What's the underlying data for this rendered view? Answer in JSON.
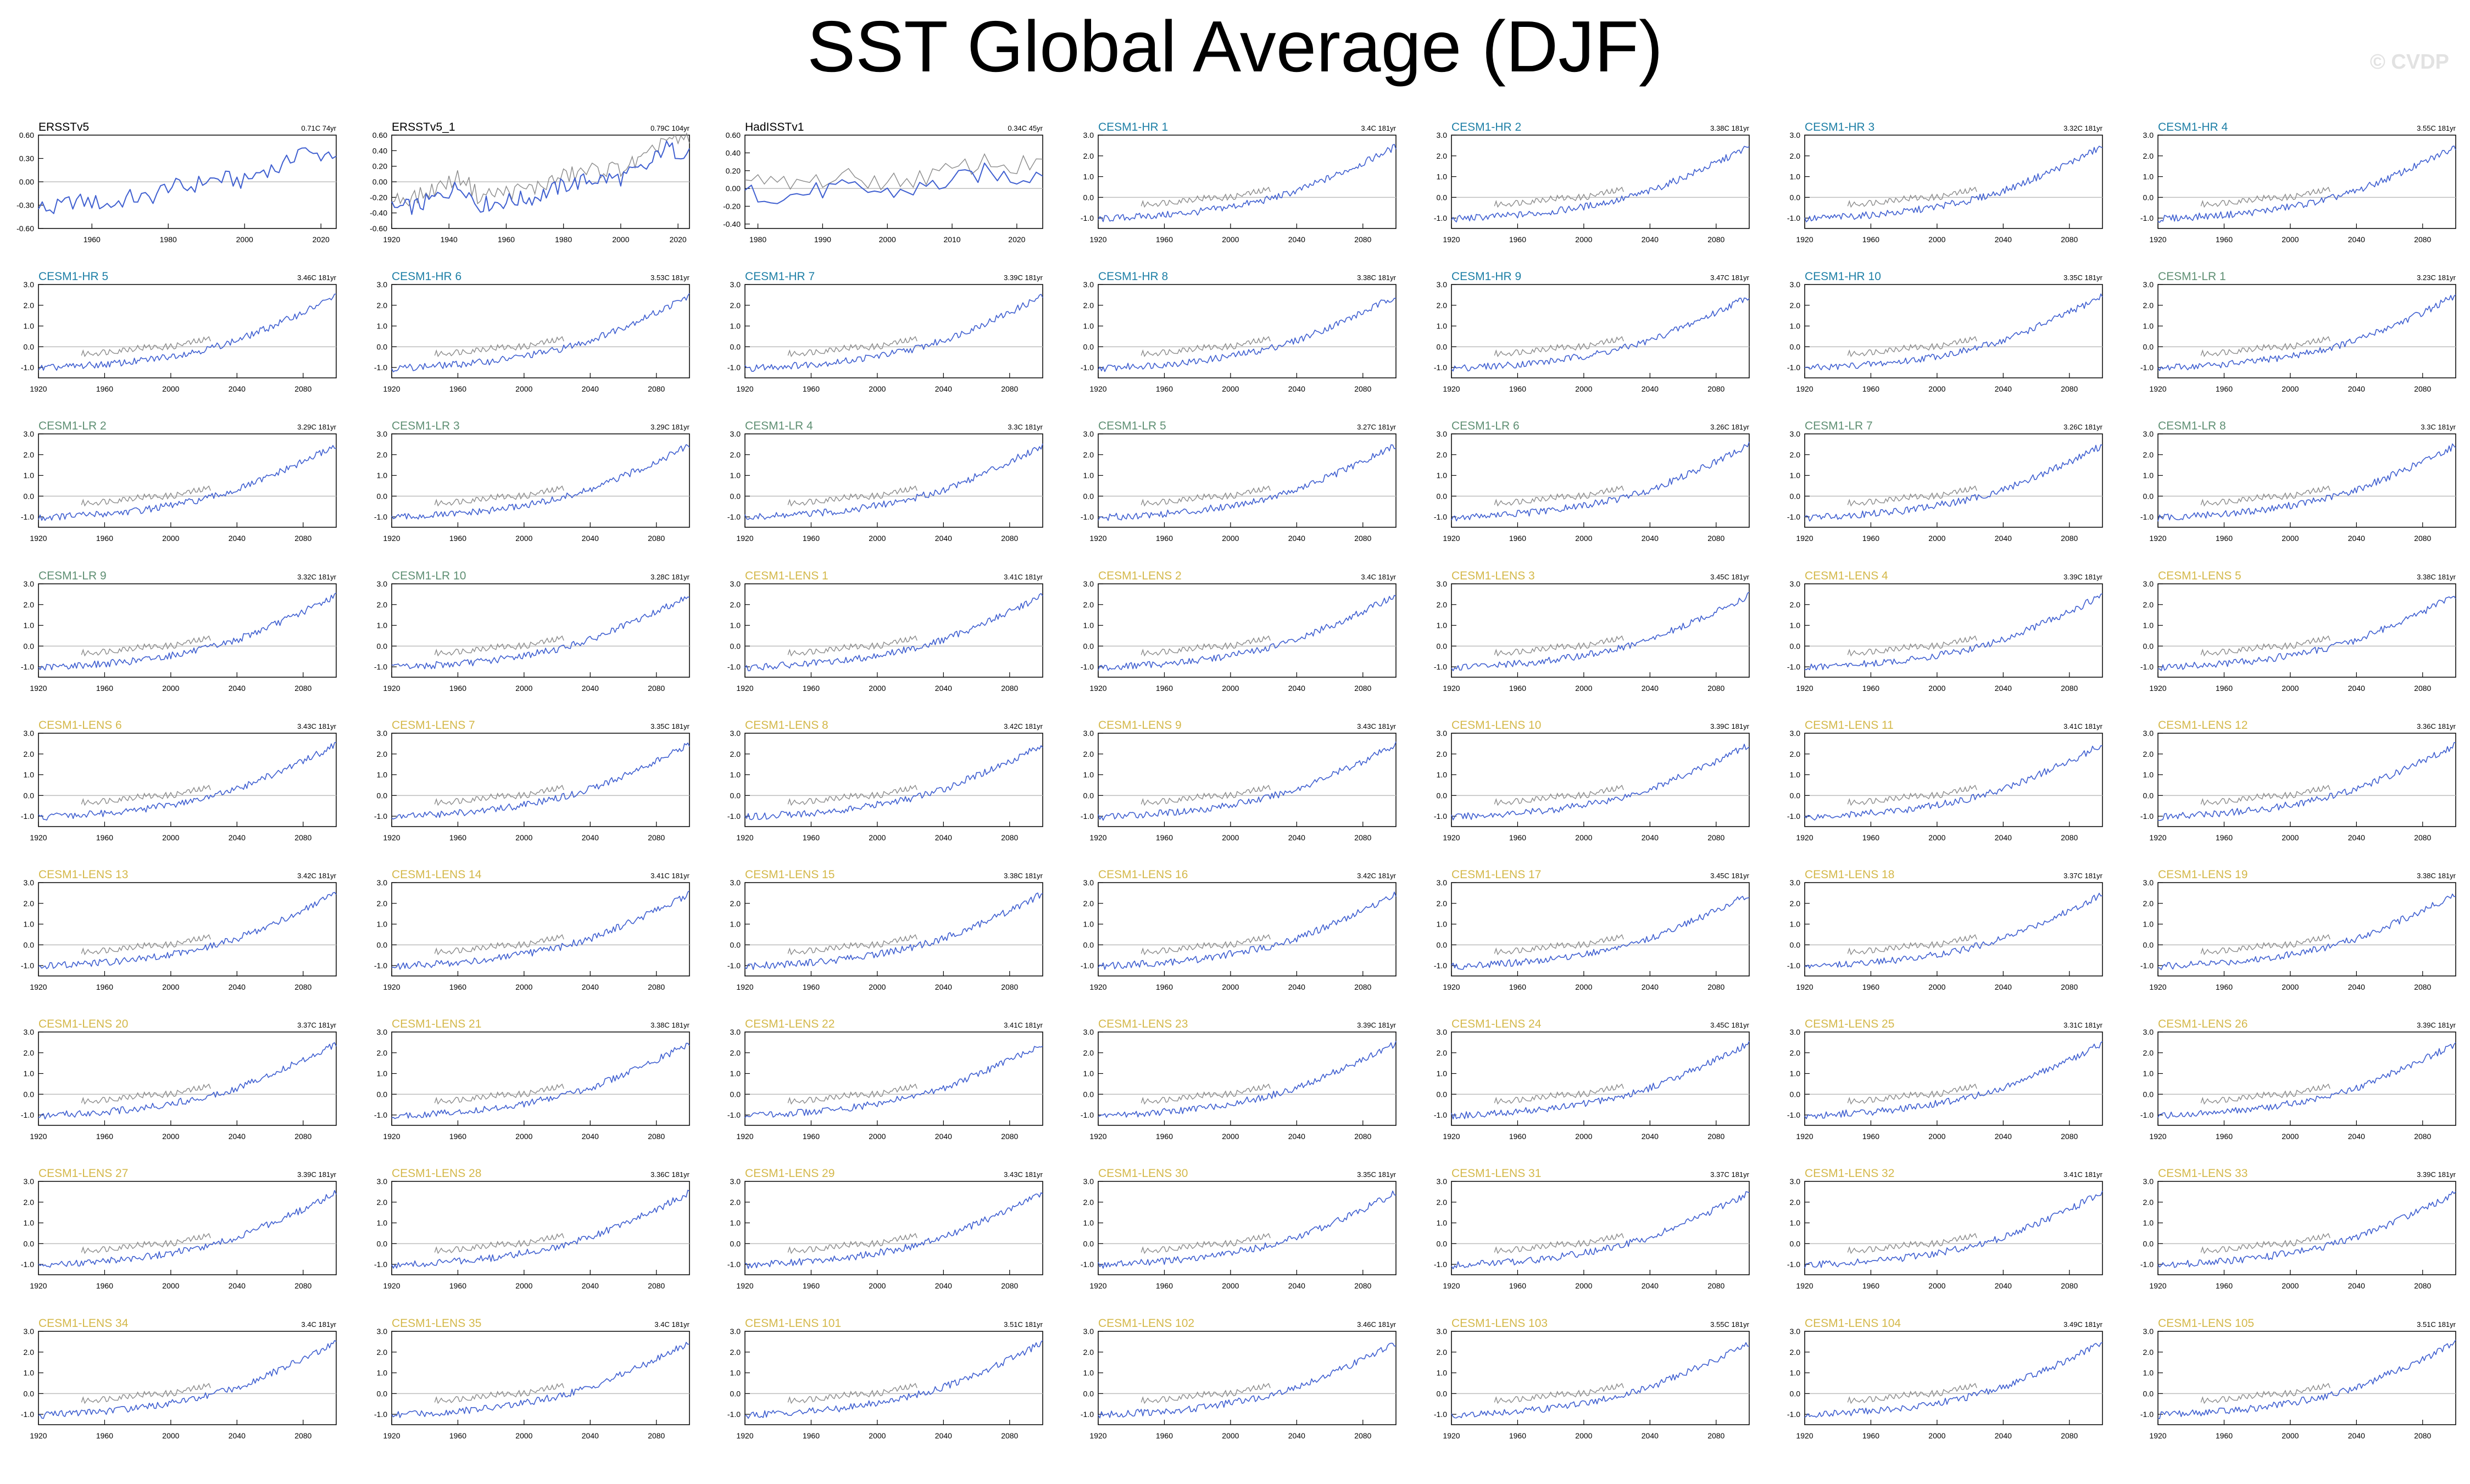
{
  "title": "SST Global Average (DJF)",
  "watermark": "© CVDP",
  "colors": {
    "model_line": "#3f5fd0",
    "obs_overlay": "#8a8a8a",
    "obs_title": "#000000",
    "hr_title": "#1e7fa6",
    "lr_title": "#5f8f73",
    "lens_title": "#d4b84a",
    "zero_line": "#bdbdbd"
  },
  "chart_data": [
    {
      "type": "line",
      "name": "ERSSTv5",
      "group": "obs",
      "trend": "0.71C 74yr",
      "xlim": [
        1946,
        2024
      ],
      "ylim": [
        -0.6,
        0.6
      ],
      "xticks": [
        1960,
        1980,
        2000,
        2020
      ],
      "yticks": [
        -0.6,
        -0.3,
        0.0,
        0.3,
        0.6
      ],
      "ytick_labels": [
        "-0.60",
        "-0.30",
        "0.00",
        "0.30",
        "0.60"
      ],
      "x": [
        1946,
        1950,
        1955,
        1960,
        1965,
        1970,
        1975,
        1980,
        1985,
        1990,
        1995,
        2000,
        2005,
        2010,
        2015,
        2017,
        2020,
        2024
      ],
      "y": [
        -0.33,
        -0.35,
        -0.25,
        -0.26,
        -0.3,
        -0.2,
        -0.22,
        -0.05,
        -0.08,
        0.02,
        0.04,
        0.0,
        0.16,
        0.18,
        0.46,
        0.33,
        0.35,
        0.38
      ]
    },
    {
      "type": "line",
      "name": "ERSSTv5_1",
      "group": "obs",
      "trend": "0.79C 104yr",
      "xlim": [
        1920,
        2024
      ],
      "ylim": [
        -0.6,
        0.6
      ],
      "xticks": [
        1920,
        1940,
        1960,
        1980,
        2000,
        2020
      ],
      "yticks": [
        -0.6,
        -0.4,
        -0.2,
        0.0,
        0.2,
        0.4,
        0.6
      ],
      "ytick_labels": [
        "-0.60",
        "-0.40",
        "-0.20",
        "0.00",
        "0.20",
        "0.40",
        "0.60"
      ],
      "x": [
        1920,
        1930,
        1940,
        1945,
        1950,
        1960,
        1970,
        1980,
        1990,
        2000,
        2010,
        2015,
        2020,
        2024
      ],
      "y": [
        -0.35,
        -0.3,
        -0.12,
        -0.05,
        -0.3,
        -0.25,
        -0.2,
        -0.05,
        0.03,
        0.05,
        0.2,
        0.45,
        0.38,
        0.42
      ]
    },
    {
      "type": "line",
      "name": "HadISSTv1",
      "group": "obs",
      "trend": "0.34C 45yr",
      "xlim": [
        1978,
        2024
      ],
      "ylim": [
        -0.45,
        0.6
      ],
      "xticks": [
        1980,
        1990,
        2000,
        2010,
        2020
      ],
      "yticks": [
        -0.4,
        -0.2,
        0.0,
        0.2,
        0.4,
        0.6
      ],
      "ytick_labels": [
        "-0.40",
        "-0.20",
        "0.00",
        "0.20",
        "0.40",
        "0.60"
      ],
      "x": [
        1978,
        1985,
        1990,
        1995,
        2000,
        2005,
        2010,
        2015,
        2020,
        2024
      ],
      "y": [
        -0.05,
        -0.08,
        -0.02,
        0.0,
        -0.05,
        0.0,
        0.08,
        0.18,
        0.12,
        0.2
      ]
    },
    {
      "type": "line",
      "name": "CESM1-HR 1",
      "group": "hr",
      "trend": "3.4C 181yr"
    },
    {
      "type": "line",
      "name": "CESM1-HR 2",
      "group": "hr",
      "trend": "3.38C 181yr"
    },
    {
      "type": "line",
      "name": "CESM1-HR 3",
      "group": "hr",
      "trend": "3.32C 181yr"
    },
    {
      "type": "line",
      "name": "CESM1-HR 4",
      "group": "hr",
      "trend": "3.55C 181yr"
    },
    {
      "type": "line",
      "name": "CESM1-HR 5",
      "group": "hr",
      "trend": "3.46C 181yr"
    },
    {
      "type": "line",
      "name": "CESM1-HR 6",
      "group": "hr",
      "trend": "3.53C 181yr"
    },
    {
      "type": "line",
      "name": "CESM1-HR 7",
      "group": "hr",
      "trend": "3.39C 181yr"
    },
    {
      "type": "line",
      "name": "CESM1-HR 8",
      "group": "hr",
      "trend": "3.38C 181yr"
    },
    {
      "type": "line",
      "name": "CESM1-HR 9",
      "group": "hr",
      "trend": "3.47C 181yr"
    },
    {
      "type": "line",
      "name": "CESM1-HR 10",
      "group": "hr",
      "trend": "3.35C 181yr"
    },
    {
      "type": "line",
      "name": "CESM1-LR 1",
      "group": "lr",
      "trend": "3.23C 181yr"
    },
    {
      "type": "line",
      "name": "CESM1-LR 2",
      "group": "lr",
      "trend": "3.29C 181yr"
    },
    {
      "type": "line",
      "name": "CESM1-LR 3",
      "group": "lr",
      "trend": "3.29C 181yr"
    },
    {
      "type": "line",
      "name": "CESM1-LR 4",
      "group": "lr",
      "trend": "3.3C 181yr"
    },
    {
      "type": "line",
      "name": "CESM1-LR 5",
      "group": "lr",
      "trend": "3.27C 181yr"
    },
    {
      "type": "line",
      "name": "CESM1-LR 6",
      "group": "lr",
      "trend": "3.26C 181yr"
    },
    {
      "type": "line",
      "name": "CESM1-LR 7",
      "group": "lr",
      "trend": "3.26C 181yr"
    },
    {
      "type": "line",
      "name": "CESM1-LR 8",
      "group": "lr",
      "trend": "3.3C 181yr"
    },
    {
      "type": "line",
      "name": "CESM1-LR 9",
      "group": "lr",
      "trend": "3.32C 181yr"
    },
    {
      "type": "line",
      "name": "CESM1-LR 10",
      "group": "lr",
      "trend": "3.28C 181yr"
    },
    {
      "type": "line",
      "name": "CESM1-LENS 1",
      "group": "lens",
      "trend": "3.41C 181yr"
    },
    {
      "type": "line",
      "name": "CESM1-LENS 2",
      "group": "lens",
      "trend": "3.4C 181yr"
    },
    {
      "type": "line",
      "name": "CESM1-LENS 3",
      "group": "lens",
      "trend": "3.45C 181yr"
    },
    {
      "type": "line",
      "name": "CESM1-LENS 4",
      "group": "lens",
      "trend": "3.39C 181yr"
    },
    {
      "type": "line",
      "name": "CESM1-LENS 5",
      "group": "lens",
      "trend": "3.38C 181yr"
    },
    {
      "type": "line",
      "name": "CESM1-LENS 6",
      "group": "lens",
      "trend": "3.43C 181yr"
    },
    {
      "type": "line",
      "name": "CESM1-LENS 7",
      "group": "lens",
      "trend": "3.35C 181yr"
    },
    {
      "type": "line",
      "name": "CESM1-LENS 8",
      "group": "lens",
      "trend": "3.42C 181yr"
    },
    {
      "type": "line",
      "name": "CESM1-LENS 9",
      "group": "lens",
      "trend": "3.43C 181yr"
    },
    {
      "type": "line",
      "name": "CESM1-LENS 10",
      "group": "lens",
      "trend": "3.39C 181yr"
    },
    {
      "type": "line",
      "name": "CESM1-LENS 11",
      "group": "lens",
      "trend": "3.41C 181yr"
    },
    {
      "type": "line",
      "name": "CESM1-LENS 12",
      "group": "lens",
      "trend": "3.36C 181yr"
    },
    {
      "type": "line",
      "name": "CESM1-LENS 13",
      "group": "lens",
      "trend": "3.42C 181yr"
    },
    {
      "type": "line",
      "name": "CESM1-LENS 14",
      "group": "lens",
      "trend": "3.41C 181yr"
    },
    {
      "type": "line",
      "name": "CESM1-LENS 15",
      "group": "lens",
      "trend": "3.38C 181yr"
    },
    {
      "type": "line",
      "name": "CESM1-LENS 16",
      "group": "lens",
      "trend": "3.42C 181yr"
    },
    {
      "type": "line",
      "name": "CESM1-LENS 17",
      "group": "lens",
      "trend": "3.45C 181yr"
    },
    {
      "type": "line",
      "name": "CESM1-LENS 18",
      "group": "lens",
      "trend": "3.37C 181yr"
    },
    {
      "type": "line",
      "name": "CESM1-LENS 19",
      "group": "lens",
      "trend": "3.38C 181yr"
    },
    {
      "type": "line",
      "name": "CESM1-LENS 20",
      "group": "lens",
      "trend": "3.37C 181yr"
    },
    {
      "type": "line",
      "name": "CESM1-LENS 21",
      "group": "lens",
      "trend": "3.38C 181yr"
    },
    {
      "type": "line",
      "name": "CESM1-LENS 22",
      "group": "lens",
      "trend": "3.41C 181yr"
    },
    {
      "type": "line",
      "name": "CESM1-LENS 23",
      "group": "lens",
      "trend": "3.39C 181yr"
    },
    {
      "type": "line",
      "name": "CESM1-LENS 24",
      "group": "lens",
      "trend": "3.45C 181yr"
    },
    {
      "type": "line",
      "name": "CESM1-LENS 25",
      "group": "lens",
      "trend": "3.31C 181yr"
    },
    {
      "type": "line",
      "name": "CESM1-LENS 26",
      "group": "lens",
      "trend": "3.39C 181yr"
    },
    {
      "type": "line",
      "name": "CESM1-LENS 27",
      "group": "lens",
      "trend": "3.39C 181yr"
    },
    {
      "type": "line",
      "name": "CESM1-LENS 28",
      "group": "lens",
      "trend": "3.36C 181yr"
    },
    {
      "type": "line",
      "name": "CESM1-LENS 29",
      "group": "lens",
      "trend": "3.43C 181yr"
    },
    {
      "type": "line",
      "name": "CESM1-LENS 30",
      "group": "lens",
      "trend": "3.35C 181yr"
    },
    {
      "type": "line",
      "name": "CESM1-LENS 31",
      "group": "lens",
      "trend": "3.37C 181yr"
    },
    {
      "type": "line",
      "name": "CESM1-LENS 32",
      "group": "lens",
      "trend": "3.41C 181yr"
    },
    {
      "type": "line",
      "name": "CESM1-LENS 33",
      "group": "lens",
      "trend": "3.39C 181yr"
    },
    {
      "type": "line",
      "name": "CESM1-LENS 34",
      "group": "lens",
      "trend": "3.4C 181yr"
    },
    {
      "type": "line",
      "name": "CESM1-LENS 35",
      "group": "lens",
      "trend": "3.4C 181yr"
    },
    {
      "type": "line",
      "name": "CESM1-LENS 101",
      "group": "lens",
      "trend": "3.51C 181yr"
    },
    {
      "type": "line",
      "name": "CESM1-LENS 102",
      "group": "lens",
      "trend": "3.46C 181yr"
    },
    {
      "type": "line",
      "name": "CESM1-LENS 103",
      "group": "lens",
      "trend": "3.55C 181yr"
    },
    {
      "type": "line",
      "name": "CESM1-LENS 104",
      "group": "lens",
      "trend": "3.49C 181yr"
    },
    {
      "type": "line",
      "name": "CESM1-LENS 105",
      "group": "lens",
      "trend": "3.51C 181yr"
    }
  ],
  "model_defaults": {
    "xlim": [
      1920,
      2100
    ],
    "ylim": [
      -1.5,
      3.0
    ],
    "xticks": [
      1920,
      1960,
      2000,
      2040,
      2080
    ],
    "yticks": [
      -1.0,
      0.0,
      1.0,
      2.0,
      3.0
    ],
    "ytick_labels": [
      "-1.0",
      "0.0",
      "1.0",
      "2.0",
      "3.0"
    ],
    "x": [
      1920,
      1940,
      1960,
      1980,
      2000,
      2020,
      2040,
      2060,
      2080,
      2100
    ],
    "y": [
      -1.05,
      -0.95,
      -0.85,
      -0.7,
      -0.45,
      -0.15,
      0.3,
      0.95,
      1.65,
      2.45
    ],
    "obs_overlay": {
      "x": [
        1946,
        1960,
        1980,
        2000,
        2024
      ],
      "y": [
        -0.35,
        -0.25,
        -0.05,
        0.0,
        0.38
      ]
    }
  }
}
